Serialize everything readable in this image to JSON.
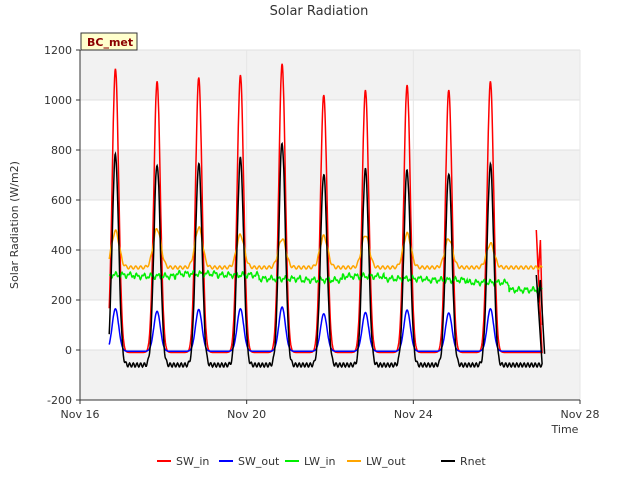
{
  "chart_data": {
    "type": "line",
    "title": "Solar Radiation",
    "xlabel": "Time",
    "ylabel": "Solar Radiation (W/m2)",
    "badge": "BC_met",
    "xlim": [
      "Nov 16",
      "Nov 28"
    ],
    "ylim": [
      -200,
      1200
    ],
    "x_ticks": [
      {
        "label": "Nov 16",
        "day": 16
      },
      {
        "label": "Nov 20",
        "day": 20
      },
      {
        "label": "Nov 24",
        "day": 24
      },
      {
        "label": "Nov 28",
        "day": 28
      }
    ],
    "y_ticks": [
      -200,
      0,
      200,
      400,
      600,
      800,
      1000,
      1200
    ],
    "grid": true,
    "legend_position": "bottom",
    "days": [
      16.85,
      17.85,
      18.85,
      19.85,
      20.85,
      21.85,
      22.85,
      23.85,
      24.85,
      25.85
    ],
    "series": [
      {
        "name": "SW_in",
        "color": "#ff0000",
        "peaks": [
          1125,
          1075,
          1090,
          1100,
          1145,
          1020,
          1040,
          1060,
          1040,
          1075
        ],
        "night": -10
      },
      {
        "name": "SW_out",
        "color": "#0000ff",
        "peaks": [
          165,
          155,
          162,
          165,
          172,
          145,
          150,
          160,
          148,
          165
        ],
        "night": -5
      },
      {
        "name": "LW_in",
        "color": "#00ee00",
        "day_levels": [
          300,
          295,
          305,
          300,
          285,
          280,
          295,
          285,
          280,
          270,
          240
        ],
        "night": 290
      },
      {
        "name": "LW_out",
        "color": "#ffa500",
        "peaks": [
          475,
          485,
          490,
          460,
          445,
          455,
          460,
          465,
          445,
          425
        ],
        "night": 330
      },
      {
        "name": "Rnet",
        "color": "#000000",
        "peaks": [
          780,
          745,
          745,
          765,
          830,
          705,
          720,
          720,
          710,
          740
        ],
        "night": -60
      }
    ]
  }
}
